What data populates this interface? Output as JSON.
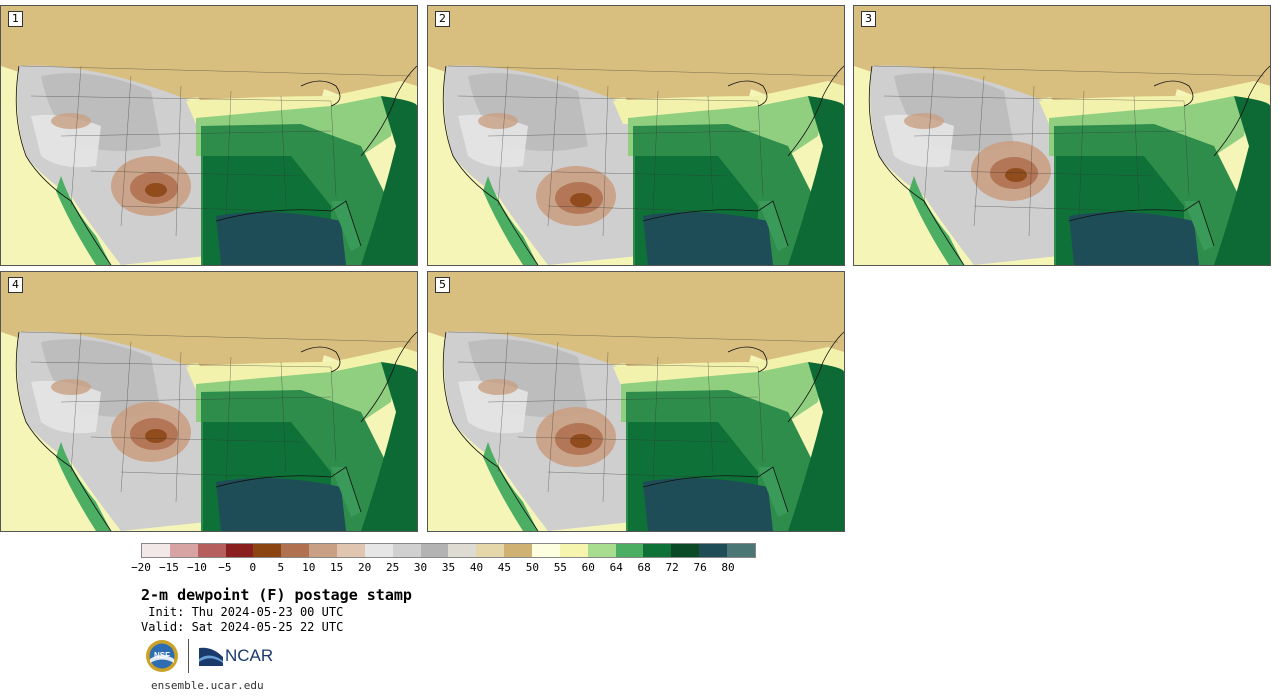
{
  "panels": [
    {
      "label": "1"
    },
    {
      "label": "2"
    },
    {
      "label": "3"
    },
    {
      "label": "4"
    },
    {
      "label": "5"
    }
  ],
  "colorbar": {
    "colors": [
      "#f3e8e8",
      "#d8a3a3",
      "#b55f5f",
      "#8a1f1f",
      "#8b4513",
      "#b07150",
      "#c9a083",
      "#e0c5b0",
      "#e6e6e6",
      "#d0d0d0",
      "#b3b3b3",
      "#dedbd2",
      "#e6d7ab",
      "#cfb173",
      "#fdfde0",
      "#f5f5b0",
      "#a8dc8e",
      "#4cae62",
      "#0e7238",
      "#0b4a26",
      "#1e4d58",
      "#4a7676"
    ],
    "tick_labels": [
      "−20",
      "−15",
      "−10",
      "−5",
      "0",
      "5",
      "10",
      "15",
      "20",
      "25",
      "30",
      "35",
      "40",
      "45",
      "50",
      "55",
      "60",
      "64",
      "68",
      "72",
      "76",
      "80"
    ]
  },
  "title": "2-m dewpoint (F) postage stamp",
  "init": " Init: Thu 2024-05-23 00 UTC",
  "valid": "Valid: Sat 2024-05-25 22 UTC",
  "logos": {
    "nsf": "NSF",
    "ncar": "NCAR"
  },
  "url": "ensemble.ucar.edu"
}
